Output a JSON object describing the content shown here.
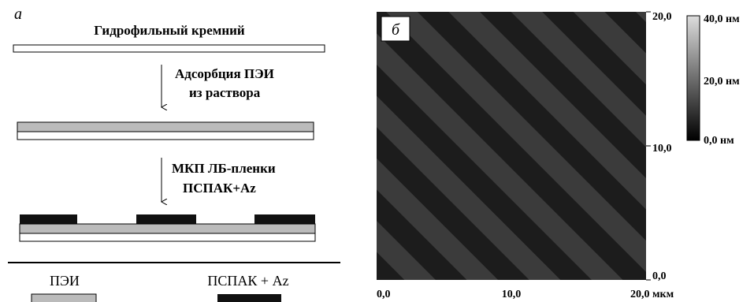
{
  "panel_a": {
    "label": "а",
    "steps": [
      {
        "title": "Гидрофильный кремний"
      },
      {
        "lines": [
          "Адсорбция ПЭИ",
          "из раствора"
        ]
      },
      {
        "lines": [
          "МКП ЛБ-пленки",
          "ПСПАК+Az"
        ]
      }
    ],
    "legend": [
      "ПЭИ",
      "ПСПАК + Az"
    ]
  },
  "panel_b": {
    "label": "б",
    "right_axis": [
      "20,0",
      "10,0",
      "0,0"
    ],
    "bottom_axis": [
      "0,0",
      "10,0",
      "20,0 мкм"
    ],
    "colorbar": [
      "40,0 нм",
      "20,0 нм",
      "0,0 нм"
    ]
  }
}
